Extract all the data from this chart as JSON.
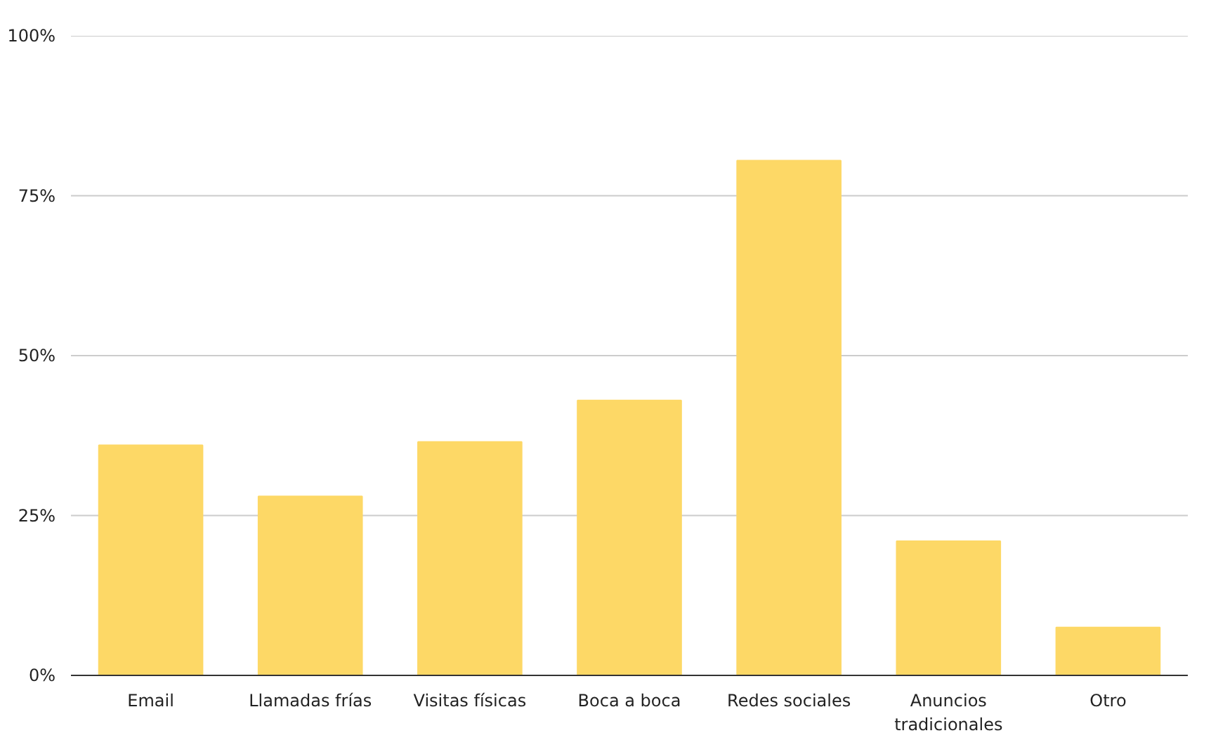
{
  "chart_data": {
    "type": "bar",
    "categories": [
      "Email",
      "Llamadas frías",
      "Visitas físicas",
      "Boca a boca",
      "Redes sociales",
      "Anuncios tradicionales",
      "Otro"
    ],
    "values": [
      36,
      28,
      36.5,
      43,
      80.5,
      21,
      7.5
    ],
    "color": "#fdd866",
    "ylim": [
      0,
      100
    ],
    "yticks": [
      {
        "value": 0,
        "label": "0%"
      },
      {
        "value": 25,
        "label": "25%"
      },
      {
        "value": 50,
        "label": "50%"
      },
      {
        "value": 75,
        "label": "75%"
      },
      {
        "value": 100,
        "label": "100%"
      }
    ],
    "grid": "y"
  }
}
